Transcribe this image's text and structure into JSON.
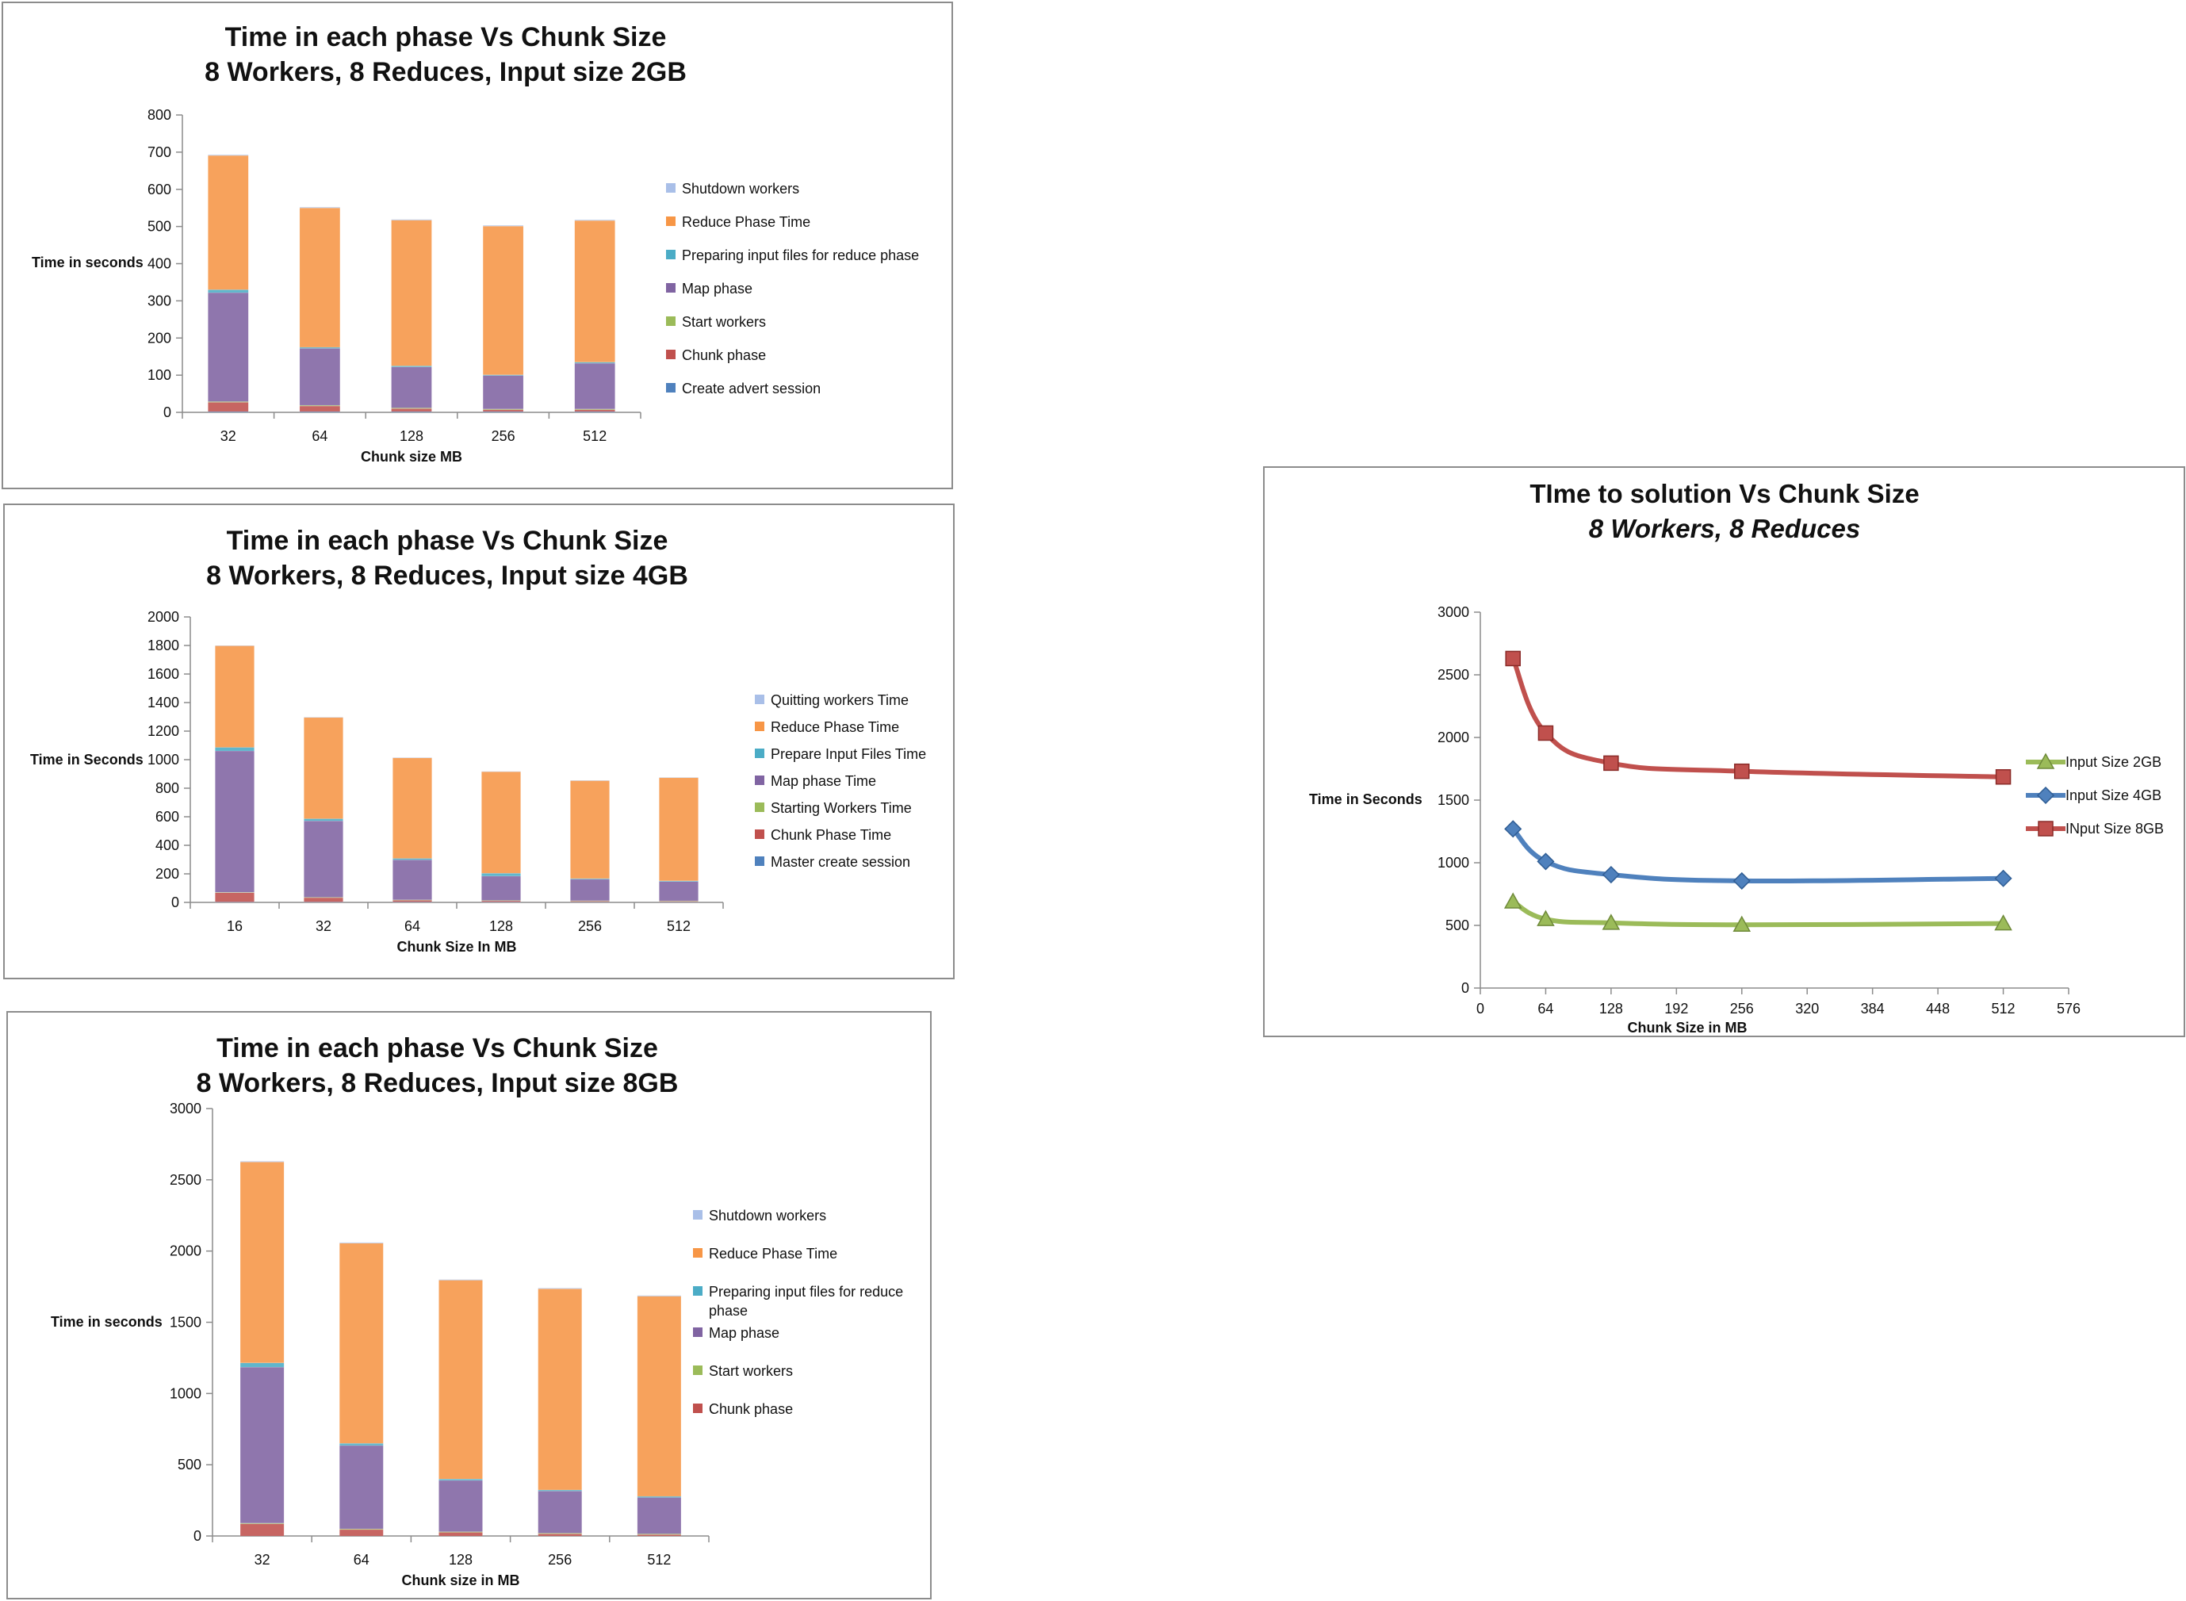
{
  "colors": {
    "shutdown": "#a9bfe8",
    "reduce": "#f79646",
    "prepare": "#4bacc6",
    "map": "#8064a2",
    "start": "#9bbb59",
    "chunk": "#c0504d",
    "create": "#4f81bd",
    "line_2gb": "#9bbb59",
    "line_4gb": "#4f81bd",
    "line_8gb": "#c0504d"
  },
  "chart_data": [
    {
      "id": "c1",
      "type": "bar",
      "stacked": true,
      "title": [
        "Time in each phase Vs Chunk Size",
        "8 Workers, 8 Reduces, Input size 2GB"
      ],
      "xlabel": "Chunk size MB",
      "ylabel": "Time in seconds",
      "ylim": [
        0,
        800
      ],
      "yticks": [
        0,
        100,
        200,
        300,
        400,
        500,
        600,
        700,
        800
      ],
      "categories": [
        "32",
        "64",
        "128",
        "256",
        "512"
      ],
      "legend_position": "right",
      "series": [
        {
          "name": "Create  advert session",
          "key": "create",
          "values": [
            2,
            2,
            2,
            2,
            2
          ]
        },
        {
          "name": "Chunk phase",
          "key": "chunk",
          "values": [
            25,
            15,
            8,
            5,
            5
          ]
        },
        {
          "name": "Start workers",
          "key": "start",
          "values": [
            2,
            2,
            2,
            2,
            2
          ]
        },
        {
          "name": "Map phase",
          "key": "map",
          "values": [
            293,
            153,
            110,
            90,
            123
          ]
        },
        {
          "name": "Preparing input files for reduce phase",
          "key": "prepare",
          "values": [
            8,
            3,
            3,
            2,
            3
          ]
        },
        {
          "name": "Reduce Phase Time",
          "key": "reduce",
          "values": [
            361,
            375,
            392,
            400,
            381
          ]
        },
        {
          "name": "Shutdown workers",
          "key": "shutdown",
          "values": [
            2,
            2,
            2,
            2,
            2
          ]
        }
      ]
    },
    {
      "id": "c2",
      "type": "bar",
      "stacked": true,
      "title": [
        "Time in each phase Vs Chunk Size",
        "8 Workers, 8 Reduces, Input size 4GB"
      ],
      "xlabel": "Chunk Size In MB",
      "ylabel": "Time in Seconds",
      "ylim": [
        0,
        2000
      ],
      "yticks": [
        0,
        200,
        400,
        600,
        800,
        1000,
        1200,
        1400,
        1600,
        1800,
        2000
      ],
      "categories": [
        "16",
        "32",
        "64",
        "128",
        "256",
        "512"
      ],
      "legend_position": "right",
      "series": [
        {
          "name": "Master create session",
          "key": "create",
          "values": [
            3,
            3,
            3,
            3,
            3,
            3
          ]
        },
        {
          "name": "Chunk Phase Time",
          "key": "chunk",
          "values": [
            65,
            30,
            12,
            8,
            6,
            5
          ]
        },
        {
          "name": "Starting Workers Time",
          "key": "start",
          "values": [
            3,
            3,
            3,
            3,
            3,
            3
          ]
        },
        {
          "name": "Map phase Time",
          "key": "map",
          "values": [
            990,
            535,
            280,
            170,
            150,
            135
          ]
        },
        {
          "name": "Prepare Input Files Time",
          "key": "prepare",
          "values": [
            25,
            15,
            10,
            20,
            5,
            5
          ]
        },
        {
          "name": "Reduce Phase Time",
          "key": "reduce",
          "values": [
            712,
            710,
            705,
            712,
            686,
            723
          ]
        },
        {
          "name": "Quitting workers Time",
          "key": "shutdown",
          "values": [
            2,
            2,
            2,
            2,
            2,
            2
          ]
        }
      ]
    },
    {
      "id": "c3",
      "type": "bar",
      "stacked": true,
      "title": [
        "Time in each phase Vs Chunk Size",
        "8 Workers, 8 Reduces, Input size 8GB"
      ],
      "xlabel": "Chunk size in MB",
      "ylabel": "Time in seconds",
      "ylim": [
        0,
        3000
      ],
      "yticks": [
        0,
        500,
        1000,
        1500,
        2000,
        2500,
        3000
      ],
      "categories": [
        "32",
        "64",
        "128",
        "256",
        "512"
      ],
      "legend_position": "right",
      "series": [
        {
          "name": "Chunk phase",
          "key": "chunk",
          "values": [
            85,
            45,
            25,
            15,
            10
          ]
        },
        {
          "name": "Start workers",
          "key": "start",
          "values": [
            5,
            5,
            5,
            5,
            5
          ]
        },
        {
          "name": "Map phase",
          "key": "map",
          "values": [
            1095,
            585,
            360,
            295,
            255
          ]
        },
        {
          "name": "Preparing input files for reduce phase",
          "key": "prepare",
          "values": [
            30,
            15,
            10,
            8,
            8
          ]
        },
        {
          "name": "Reduce Phase Time",
          "key": "reduce",
          "values": [
            1410,
            1405,
            1395,
            1412,
            1405
          ]
        },
        {
          "name": "Shutdown workers",
          "key": "shutdown",
          "values": [
            5,
            5,
            5,
            5,
            5
          ]
        }
      ]
    },
    {
      "id": "c4",
      "type": "line",
      "title": [
        "TIme to solution Vs Chunk Size",
        "8 Workers, 8 Reduces"
      ],
      "xlabel": "Chunk Size in MB",
      "ylabel": "Time  in Seconds",
      "xlim": [
        0,
        576
      ],
      "ylim": [
        0,
        3000
      ],
      "xticks": [
        0,
        64,
        128,
        192,
        256,
        320,
        384,
        448,
        512,
        576
      ],
      "yticks": [
        0,
        500,
        1000,
        1500,
        2000,
        2500,
        3000
      ],
      "legend_position": "right",
      "series": [
        {
          "name": "Input Size 2GB",
          "key": "line_2gb",
          "marker": "triangle",
          "x": [
            32,
            64,
            128,
            256,
            512
          ],
          "y": [
            690,
            550,
            520,
            505,
            515
          ]
        },
        {
          "name": "Input Size 4GB",
          "key": "line_4gb",
          "marker": "diamond",
          "x": [
            32,
            64,
            128,
            256,
            512
          ],
          "y": [
            1270,
            1010,
            905,
            855,
            875
          ]
        },
        {
          "name": "INput Size 8GB",
          "key": "line_8gb",
          "marker": "square",
          "x": [
            32,
            64,
            128,
            256,
            512
          ],
          "y": [
            2630,
            2035,
            1795,
            1730,
            1685
          ]
        }
      ]
    }
  ]
}
